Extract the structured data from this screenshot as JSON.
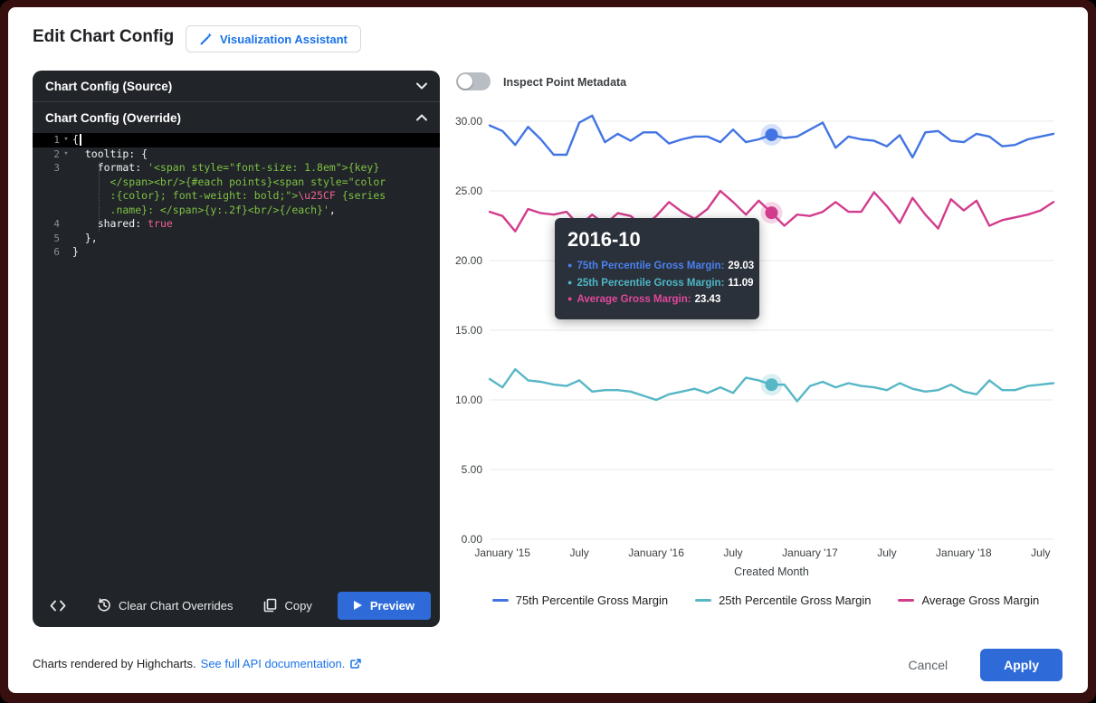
{
  "dialog": {
    "title": "Edit Chart Config"
  },
  "assistant": {
    "label": "Visualization Assistant"
  },
  "editor": {
    "source_header": "Chart Config (Source)",
    "override_header": "Chart Config (Override)",
    "toolbar": {
      "clear": "Clear Chart Overrides",
      "copy": "Copy",
      "preview": "Preview"
    },
    "code_lines": [
      {
        "num": "1",
        "fold": true,
        "active": true,
        "cursor": true,
        "segments": [
          {
            "t": "{",
            "c": "w"
          }
        ]
      },
      {
        "num": "2",
        "fold": true,
        "segments": [
          {
            "t": "  tooltip: {",
            "c": "w"
          }
        ]
      },
      {
        "num": "3",
        "segments": [
          {
            "t": "    format: ",
            "c": "w"
          },
          {
            "t": "'<span style=\"font-size: 1.8em\">{key}",
            "c": "g"
          }
        ]
      },
      {
        "num": "",
        "segments": [
          {
            "t": "      </span><br/>{#each points}<span style=\"color",
            "c": "g"
          }
        ]
      },
      {
        "num": "",
        "segments": [
          {
            "t": "      :{color}; font-weight: bold;\">",
            "c": "g"
          },
          {
            "t": "\\u25CF",
            "c": "p"
          },
          {
            "t": " {series",
            "c": "g"
          }
        ]
      },
      {
        "num": "",
        "segments": [
          {
            "t": "      .name}: </span>{y:.2f}<br/>{/each}'",
            "c": "g"
          },
          {
            "t": ",",
            "c": "w"
          }
        ]
      },
      {
        "num": "4",
        "segments": [
          {
            "t": "    shared: ",
            "c": "w"
          },
          {
            "t": "true",
            "c": "p"
          }
        ]
      },
      {
        "num": "5",
        "segments": [
          {
            "t": "  },",
            "c": "w"
          }
        ]
      },
      {
        "num": "6",
        "segments": [
          {
            "t": "}",
            "c": "w"
          }
        ]
      }
    ]
  },
  "chart_panel": {
    "inspect_label": "Inspect Point Metadata"
  },
  "tooltip": {
    "title": "2016-10",
    "rows": [
      {
        "label": "75th Percentile Gross Margin",
        "value": "29.03",
        "color": "#4a80f0"
      },
      {
        "label": "25th Percentile Gross Margin",
        "value": "11.09",
        "color": "#4db6c6"
      },
      {
        "label": "Average Gross Margin",
        "value": "23.43",
        "color": "#e0489c"
      }
    ]
  },
  "chart_data": {
    "type": "line",
    "xlabel": "Created Month",
    "ylim": [
      0,
      30
    ],
    "grid": "horizontal",
    "legend_position": "bottom",
    "y_tick_labels": [
      "30.00",
      "25.00",
      "20.00",
      "15.00",
      "10.00",
      "5.00",
      "0.00"
    ],
    "x_tick_labels": [
      "January '15",
      "July",
      "January '16",
      "July",
      "January '17",
      "July",
      "January '18",
      "July"
    ],
    "x_tick_month_index": [
      1,
      7,
      13,
      19,
      25,
      31,
      37,
      43
    ],
    "x": [
      "2014-12",
      "2015-01",
      "2015-02",
      "2015-03",
      "2015-04",
      "2015-05",
      "2015-06",
      "2015-07",
      "2015-08",
      "2015-09",
      "2015-10",
      "2015-11",
      "2015-12",
      "2016-01",
      "2016-02",
      "2016-03",
      "2016-04",
      "2016-05",
      "2016-06",
      "2016-07",
      "2016-08",
      "2016-09",
      "2016-10",
      "2016-11",
      "2016-12",
      "2017-01",
      "2017-02",
      "2017-03",
      "2017-04",
      "2017-05",
      "2017-06",
      "2017-07",
      "2017-08",
      "2017-09",
      "2017-10",
      "2017-11",
      "2017-12",
      "2018-01",
      "2018-02",
      "2018-03",
      "2018-04",
      "2018-05",
      "2018-06",
      "2018-07",
      "2018-08"
    ],
    "series": [
      {
        "name": "75th Percentile Gross Margin",
        "color": "#4274e3",
        "values": [
          29.7,
          29.3,
          28.3,
          29.6,
          28.7,
          27.6,
          27.6,
          29.9,
          30.4,
          28.5,
          29.1,
          28.6,
          29.2,
          29.2,
          28.4,
          28.7,
          28.9,
          28.9,
          28.5,
          29.4,
          28.5,
          28.7,
          29.03,
          28.8,
          28.9,
          29.4,
          29.9,
          28.1,
          28.9,
          28.7,
          28.6,
          28.2,
          29.0,
          27.4,
          29.2,
          29.3,
          28.6,
          28.5,
          29.1,
          28.9,
          28.2,
          28.3,
          28.7,
          28.9,
          29.1
        ]
      },
      {
        "name": "25th Percentile Gross Margin",
        "color": "#57b7c6",
        "values": [
          11.5,
          10.9,
          12.2,
          11.4,
          11.3,
          11.1,
          11.0,
          11.4,
          10.6,
          10.7,
          10.7,
          10.6,
          10.3,
          10.0,
          10.4,
          10.6,
          10.8,
          10.5,
          10.9,
          10.5,
          11.6,
          11.4,
          11.09,
          11.1,
          9.9,
          11.0,
          11.3,
          10.9,
          11.2,
          11.0,
          10.9,
          10.7,
          11.2,
          10.8,
          10.6,
          10.7,
          11.1,
          10.6,
          10.4,
          11.4,
          10.7,
          10.7,
          11.0,
          11.1,
          11.2
        ]
      },
      {
        "name": "Average Gross Margin",
        "color": "#d23c8c",
        "values": [
          23.5,
          23.2,
          22.1,
          23.7,
          23.4,
          23.3,
          23.5,
          22.5,
          23.3,
          22.6,
          23.4,
          23.2,
          22.4,
          23.2,
          24.2,
          23.5,
          23.0,
          23.7,
          25.0,
          24.2,
          23.3,
          24.3,
          23.43,
          22.5,
          23.3,
          23.2,
          23.5,
          24.2,
          23.5,
          23.5,
          24.9,
          23.9,
          22.7,
          24.5,
          23.3,
          22.3,
          24.4,
          23.6,
          24.3,
          22.5,
          22.9,
          23.1,
          23.3,
          23.6,
          24.2
        ]
      }
    ],
    "highlight": {
      "month": "2016-10",
      "index": 22
    }
  },
  "footer": {
    "credit": "Charts rendered by Highcharts.",
    "link": "See full API documentation.",
    "cancel": "Cancel",
    "apply": "Apply"
  }
}
